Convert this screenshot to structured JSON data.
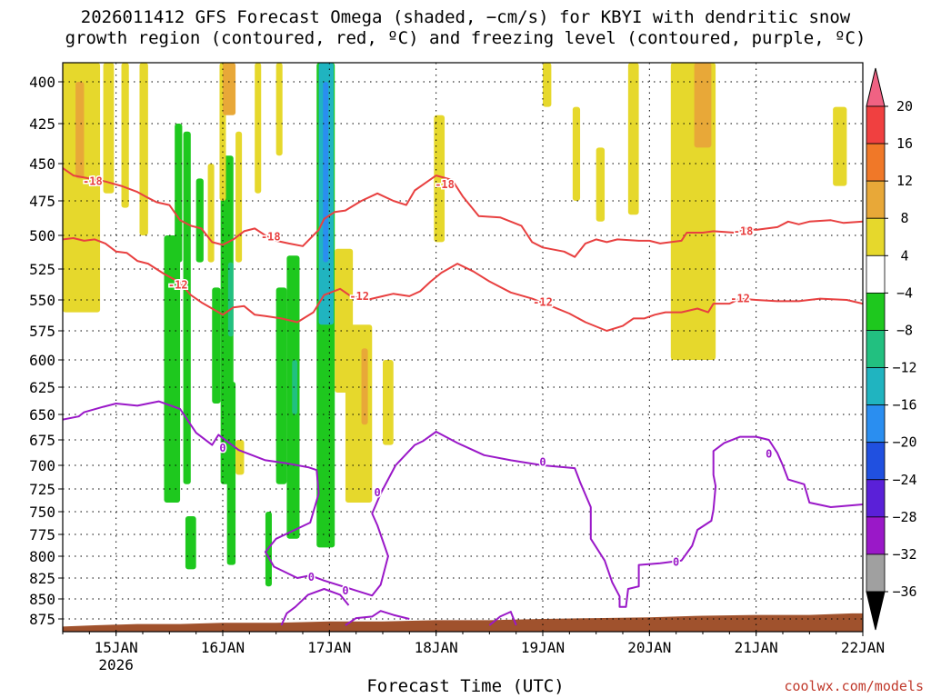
{
  "chart_data": {
    "type": "heatmap",
    "title_line1": "2026011412 GFS Forecast Omega (shaded, −cm/s) for KBYI with dendritic snow",
    "title_line2": "growth region (contoured, red, ºC) and freezing level (contoured, purple, ºC)",
    "xlabel": "Forecast Time (UTC)",
    "credit": "coolwx.com/models",
    "x_ticks": [
      {
        "day": 15,
        "label": "15JAN",
        "sub": "2026"
      },
      {
        "day": 16,
        "label": "16JAN"
      },
      {
        "day": 17,
        "label": "17JAN"
      },
      {
        "day": 18,
        "label": "18JAN"
      },
      {
        "day": 19,
        "label": "19JAN"
      },
      {
        "day": 20,
        "label": "20JAN"
      },
      {
        "day": 21,
        "label": "21JAN"
      },
      {
        "day": 22,
        "label": "22JAN"
      }
    ],
    "xlim": [
      14.5,
      22.0
    ],
    "y_ticks": [
      400,
      425,
      450,
      475,
      500,
      525,
      550,
      575,
      600,
      625,
      650,
      675,
      700,
      725,
      750,
      775,
      800,
      825,
      850,
      875
    ],
    "y_tick_labels": [
      "400",
      "425",
      "450",
      "475",
      "500",
      "525",
      "550",
      "575",
      "600",
      "625",
      "650",
      "675",
      "700",
      "725",
      "750",
      "775",
      "800",
      "825",
      "850",
      "875"
    ],
    "ylim": [
      885,
      385
    ],
    "colorbar": {
      "labels": [
        "20",
        "16",
        "12",
        "8",
        "4",
        "−4",
        "−8",
        "−12",
        "−16",
        "−20",
        "−24",
        "−28",
        "−32",
        "−36"
      ],
      "colors": [
        "#f06283",
        "#f04040",
        "#f07828",
        "#e8a838",
        "#e6d82c",
        "#ffffff",
        "#1ec81e",
        "#22c080",
        "#20b4c0",
        "#2a8ef0",
        "#2050e0",
        "#5a20d8",
        "#9a18c8",
        "#a0a0a0"
      ]
    },
    "omega_patches": [
      {
        "x": [
          14.5,
          14.85
        ],
        "p": [
          385,
          560
        ],
        "v": 5
      },
      {
        "x": [
          14.62,
          14.7
        ],
        "p": [
          400,
          460
        ],
        "v": 9
      },
      {
        "x": [
          14.88,
          14.98
        ],
        "p": [
          385,
          470
        ],
        "v": 5
      },
      {
        "x": [
          15.05,
          15.12
        ],
        "p": [
          385,
          480
        ],
        "v": 5
      },
      {
        "x": [
          15.22,
          15.3
        ],
        "p": [
          385,
          500
        ],
        "v": 5
      },
      {
        "x": [
          15.45,
          15.6
        ],
        "p": [
          500,
          740
        ],
        "v": -5
      },
      {
        "x": [
          15.55,
          15.62
        ],
        "p": [
          425,
          520
        ],
        "v": -5
      },
      {
        "x": [
          15.63,
          15.7
        ],
        "p": [
          430,
          720
        ],
        "v": -5
      },
      {
        "x": [
          15.65,
          15.75
        ],
        "p": [
          755,
          815
        ],
        "v": -5
      },
      {
        "x": [
          15.75,
          15.82
        ],
        "p": [
          460,
          520
        ],
        "v": -5
      },
      {
        "x": [
          15.98,
          16.1
        ],
        "p": [
          445,
          720
        ],
        "v": -5
      },
      {
        "x": [
          15.9,
          15.98
        ],
        "p": [
          540,
          640
        ],
        "v": -5
      },
      {
        "x": [
          16.04,
          16.12
        ],
        "p": [
          620,
          810
        ],
        "v": -5
      },
      {
        "x": [
          16.05,
          16.1
        ],
        "p": [
          520,
          580
        ],
        "v": -10
      },
      {
        "x": [
          15.86,
          15.92
        ],
        "p": [
          450,
          520
        ],
        "v": 5
      },
      {
        "x": [
          15.97,
          16.03
        ],
        "p": [
          385,
          475
        ],
        "v": 5
      },
      {
        "x": [
          16.0,
          16.12
        ],
        "p": [
          385,
          420
        ],
        "v": 9
      },
      {
        "x": [
          16.12,
          16.18
        ],
        "p": [
          430,
          520
        ],
        "v": 5
      },
      {
        "x": [
          16.3,
          16.36
        ],
        "p": [
          385,
          470
        ],
        "v": 5
      },
      {
        "x": [
          16.5,
          16.56
        ],
        "p": [
          385,
          445
        ],
        "v": 5
      },
      {
        "x": [
          16.12,
          16.2
        ],
        "p": [
          675,
          710
        ],
        "v": 5
      },
      {
        "x": [
          16.5,
          16.6
        ],
        "p": [
          540,
          720
        ],
        "v": -5
      },
      {
        "x": [
          16.6,
          16.72
        ],
        "p": [
          515,
          780
        ],
        "v": -5
      },
      {
        "x": [
          16.65,
          16.7
        ],
        "p": [
          600,
          650
        ],
        "v": -8
      },
      {
        "x": [
          16.4,
          16.46
        ],
        "p": [
          750,
          835
        ],
        "v": -5
      },
      {
        "x": [
          16.88,
          17.05
        ],
        "p": [
          385,
          790
        ],
        "v": -5
      },
      {
        "x": [
          16.9,
          17.04
        ],
        "p": [
          385,
          570
        ],
        "v": -13
      },
      {
        "x": [
          16.94,
          16.99
        ],
        "p": [
          400,
          520
        ],
        "v": -17
      },
      {
        "x": [
          17.05,
          17.22
        ],
        "p": [
          510,
          630
        ],
        "v": 5
      },
      {
        "x": [
          17.15,
          17.4
        ],
        "p": [
          570,
          740
        ],
        "v": 5
      },
      {
        "x": [
          17.3,
          17.36
        ],
        "p": [
          590,
          660
        ],
        "v": 9
      },
      {
        "x": [
          17.5,
          17.6
        ],
        "p": [
          600,
          680
        ],
        "v": 5
      },
      {
        "x": [
          17.98,
          18.08
        ],
        "p": [
          420,
          505
        ],
        "v": 5
      },
      {
        "x": [
          19.0,
          19.08
        ],
        "p": [
          385,
          415
        ],
        "v": 5
      },
      {
        "x": [
          19.28,
          19.35
        ],
        "p": [
          415,
          475
        ],
        "v": 5
      },
      {
        "x": [
          19.5,
          19.58
        ],
        "p": [
          440,
          490
        ],
        "v": 5
      },
      {
        "x": [
          19.8,
          19.9
        ],
        "p": [
          385,
          485
        ],
        "v": 5
      },
      {
        "x": [
          20.2,
          20.62
        ],
        "p": [
          385,
          600
        ],
        "v": 5
      },
      {
        "x": [
          20.42,
          20.58
        ],
        "p": [
          385,
          440
        ],
        "v": 9
      },
      {
        "x": [
          20.55,
          20.62
        ],
        "p": [
          510,
          600
        ],
        "v": 5
      },
      {
        "x": [
          21.72,
          21.85
        ],
        "p": [
          415,
          465
        ],
        "v": 5
      }
    ],
    "freezing_level_0C": [
      [
        14.5,
        655
      ],
      [
        14.65,
        652
      ],
      [
        14.7,
        648
      ],
      [
        14.88,
        643
      ],
      [
        15.0,
        640
      ],
      [
        15.2,
        642
      ],
      [
        15.4,
        638
      ],
      [
        15.6,
        645
      ],
      [
        15.75,
        668
      ],
      [
        15.9,
        680
      ],
      [
        15.96,
        670
      ],
      [
        16.15,
        685
      ],
      [
        16.4,
        695
      ],
      [
        16.6,
        698
      ],
      [
        16.8,
        702
      ],
      [
        16.88,
        705
      ],
      [
        16.9,
        730
      ],
      [
        16.82,
        762
      ],
      [
        16.5,
        780
      ],
      [
        16.4,
        795
      ],
      [
        16.48,
        812
      ],
      [
        16.7,
        825
      ],
      [
        16.82,
        822
      ],
      [
        16.95,
        828
      ],
      [
        17.25,
        840
      ],
      [
        17.4,
        846
      ],
      [
        17.48,
        833
      ],
      [
        17.55,
        800
      ],
      [
        17.45,
        765
      ],
      [
        17.4,
        752
      ],
      [
        17.48,
        730
      ],
      [
        17.62,
        700
      ],
      [
        17.8,
        680
      ],
      [
        17.88,
        676
      ],
      [
        18.0,
        667
      ],
      [
        18.2,
        678
      ],
      [
        18.45,
        690
      ],
      [
        18.7,
        695
      ],
      [
        19.0,
        700
      ],
      [
        19.3,
        703
      ],
      [
        19.35,
        718
      ],
      [
        19.45,
        745
      ],
      [
        19.45,
        780
      ],
      [
        19.58,
        805
      ],
      [
        19.65,
        830
      ],
      [
        19.72,
        847
      ],
      [
        19.72,
        860
      ],
      [
        19.78,
        860
      ],
      [
        19.8,
        838
      ],
      [
        19.9,
        835
      ],
      [
        19.9,
        810
      ],
      [
        20.1,
        808
      ],
      [
        20.3,
        805
      ],
      [
        20.4,
        788
      ],
      [
        20.45,
        770
      ],
      [
        20.58,
        760
      ],
      [
        20.6,
        748
      ],
      [
        20.62,
        722
      ],
      [
        20.6,
        710
      ],
      [
        20.6,
        686
      ],
      [
        20.7,
        678
      ],
      [
        20.85,
        672
      ],
      [
        21.0,
        672
      ],
      [
        21.12,
        675
      ],
      [
        21.2,
        688
      ],
      [
        21.25,
        700
      ],
      [
        21.3,
        715
      ],
      [
        21.45,
        720
      ],
      [
        21.5,
        740
      ],
      [
        21.7,
        745
      ],
      [
        22.0,
        742
      ]
    ],
    "freezing_level_0C_surface": [
      [
        16.55,
        880
      ],
      [
        16.6,
        868
      ],
      [
        16.68,
        860
      ],
      [
        16.8,
        845
      ],
      [
        16.95,
        838
      ],
      [
        17.1,
        845
      ],
      [
        17.18,
        858
      ]
    ],
    "freezing_level_0C_surface2": [
      [
        17.15,
        880
      ],
      [
        17.25,
        874
      ],
      [
        17.4,
        872
      ],
      [
        17.48,
        865
      ],
      [
        17.6,
        870
      ],
      [
        17.75,
        875
      ]
    ],
    "freezing_level_0C_surface3": [
      [
        18.5,
        880
      ],
      [
        18.6,
        872
      ],
      [
        18.7,
        866
      ],
      [
        18.75,
        880
      ]
    ],
    "dgz_minus18": [
      [
        14.5,
        453
      ],
      [
        14.6,
        458
      ],
      [
        14.75,
        460
      ],
      [
        14.9,
        462
      ],
      [
        15.05,
        465
      ],
      [
        15.2,
        469
      ],
      [
        15.3,
        473
      ],
      [
        15.38,
        476
      ],
      [
        15.5,
        478
      ],
      [
        15.6,
        489
      ],
      [
        15.7,
        493
      ],
      [
        15.8,
        495
      ],
      [
        15.9,
        505
      ],
      [
        16.0,
        507
      ],
      [
        16.1,
        503
      ],
      [
        16.2,
        497
      ],
      [
        16.3,
        495
      ],
      [
        16.4,
        500
      ],
      [
        16.5,
        504
      ],
      [
        16.62,
        506
      ],
      [
        16.75,
        508
      ],
      [
        16.9,
        496
      ],
      [
        16.95,
        488
      ],
      [
        17.05,
        483
      ],
      [
        17.15,
        482
      ],
      [
        17.3,
        475
      ],
      [
        17.45,
        470
      ],
      [
        17.6,
        475
      ],
      [
        17.72,
        478
      ],
      [
        17.8,
        468
      ],
      [
        17.9,
        463
      ],
      [
        18.0,
        458
      ],
      [
        18.15,
        461
      ],
      [
        18.25,
        472
      ],
      [
        18.4,
        486
      ],
      [
        18.6,
        487
      ],
      [
        18.8,
        493
      ],
      [
        18.9,
        505
      ],
      [
        19.0,
        509
      ],
      [
        19.2,
        512
      ],
      [
        19.3,
        516
      ],
      [
        19.4,
        506
      ],
      [
        19.5,
        503
      ],
      [
        19.6,
        505
      ],
      [
        19.7,
        503
      ],
      [
        19.9,
        504
      ],
      [
        20.0,
        504
      ],
      [
        20.1,
        506
      ],
      [
        20.3,
        504
      ],
      [
        20.35,
        498
      ],
      [
        20.5,
        498
      ],
      [
        20.6,
        497
      ],
      [
        20.8,
        498
      ],
      [
        20.9,
        495
      ],
      [
        21.0,
        496
      ],
      [
        21.2,
        494
      ],
      [
        21.3,
        490
      ],
      [
        21.4,
        492
      ],
      [
        21.5,
        490
      ],
      [
        21.7,
        489
      ],
      [
        21.82,
        491
      ],
      [
        22.0,
        490
      ]
    ],
    "dgz_minus12": [
      [
        14.5,
        503
      ],
      [
        14.6,
        502
      ],
      [
        14.7,
        504
      ],
      [
        14.8,
        503
      ],
      [
        14.9,
        506
      ],
      [
        15.0,
        512
      ],
      [
        15.1,
        513
      ],
      [
        15.2,
        519
      ],
      [
        15.3,
        521
      ],
      [
        15.45,
        529
      ],
      [
        15.6,
        536
      ],
      [
        15.7,
        546
      ],
      [
        15.8,
        552
      ],
      [
        15.9,
        557
      ],
      [
        16.0,
        562
      ],
      [
        16.1,
        556
      ],
      [
        16.2,
        555
      ],
      [
        16.3,
        562
      ],
      [
        16.4,
        563
      ],
      [
        16.55,
        565
      ],
      [
        16.7,
        568
      ],
      [
        16.85,
        560
      ],
      [
        16.95,
        546
      ],
      [
        17.1,
        541
      ],
      [
        17.2,
        547
      ],
      [
        17.35,
        550
      ],
      [
        17.5,
        547
      ],
      [
        17.6,
        545
      ],
      [
        17.75,
        547
      ],
      [
        17.85,
        543
      ],
      [
        17.95,
        535
      ],
      [
        18.05,
        528
      ],
      [
        18.2,
        521
      ],
      [
        18.35,
        527
      ],
      [
        18.5,
        535
      ],
      [
        18.7,
        544
      ],
      [
        18.9,
        549
      ],
      [
        19.05,
        554
      ],
      [
        19.25,
        561
      ],
      [
        19.4,
        568
      ],
      [
        19.6,
        575
      ],
      [
        19.75,
        571
      ],
      [
        19.85,
        565
      ],
      [
        19.95,
        565
      ],
      [
        20.05,
        562
      ],
      [
        20.15,
        560
      ],
      [
        20.3,
        560
      ],
      [
        20.45,
        557
      ],
      [
        20.55,
        560
      ],
      [
        20.6,
        553
      ],
      [
        20.75,
        553
      ],
      [
        20.85,
        549
      ],
      [
        21.0,
        550
      ],
      [
        21.2,
        551
      ],
      [
        21.4,
        551
      ],
      [
        21.6,
        549
      ],
      [
        21.85,
        550
      ],
      [
        22.0,
        553
      ]
    ],
    "contour_labels": [
      {
        "text": "-18",
        "x": 14.78,
        "p": 462,
        "color": "#e84040"
      },
      {
        "text": "-18",
        "x": 16.45,
        "p": 501,
        "color": "#e84040"
      },
      {
        "text": "-18",
        "x": 18.08,
        "p": 464,
        "color": "#e84040"
      },
      {
        "text": "-18",
        "x": 20.88,
        "p": 497,
        "color": "#e84040"
      },
      {
        "text": "-12",
        "x": 15.58,
        "p": 538,
        "color": "#e84040"
      },
      {
        "text": "-12",
        "x": 17.28,
        "p": 547,
        "color": "#e84040"
      },
      {
        "text": "-12",
        "x": 19.0,
        "p": 552,
        "color": "#e84040"
      },
      {
        "text": "-12",
        "x": 20.85,
        "p": 549,
        "color": "#e84040"
      },
      {
        "text": "0",
        "x": 16.0,
        "p": 683,
        "color": "#9a18c8"
      },
      {
        "text": "0",
        "x": 17.45,
        "p": 729,
        "color": "#9a18c8"
      },
      {
        "text": "0",
        "x": 19.0,
        "p": 697,
        "color": "#9a18c8"
      },
      {
        "text": "0",
        "x": 21.12,
        "p": 689,
        "color": "#9a18c8"
      },
      {
        "text": "0",
        "x": 20.25,
        "p": 807,
        "color": "#9a18c8"
      },
      {
        "text": "0",
        "x": 16.83,
        "p": 824,
        "color": "#9a18c8"
      },
      {
        "text": "0",
        "x": 17.15,
        "p": 840,
        "color": "#9a18c8"
      }
    ],
    "terrain_color": "#a0522d",
    "terrain": [
      [
        14.5,
        881
      ],
      [
        14.8,
        880
      ],
      [
        15.2,
        879
      ],
      [
        15.6,
        879
      ],
      [
        16.0,
        878
      ],
      [
        16.5,
        878
      ],
      [
        17.0,
        877
      ],
      [
        17.5,
        877
      ],
      [
        18.0,
        876
      ],
      [
        18.5,
        876
      ],
      [
        19.0,
        875
      ],
      [
        19.5,
        874
      ],
      [
        20.0,
        873
      ],
      [
        20.5,
        871
      ],
      [
        21.0,
        870
      ],
      [
        21.5,
        870
      ],
      [
        21.9,
        868
      ],
      [
        22.0,
        868
      ]
    ]
  }
}
